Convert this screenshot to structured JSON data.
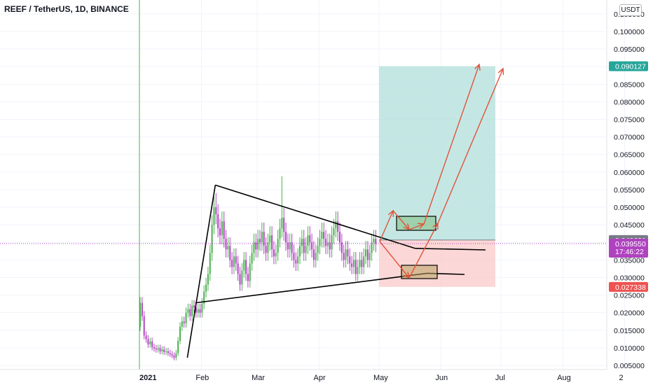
{
  "header": {
    "title": "REEF / TetherUS, 1D, BINANCE",
    "unit": "USDT"
  },
  "colors": {
    "up": "#26a69a",
    "up_wick": "#4caf50",
    "down": "#b042c0",
    "target_zone": "#b2dfdb",
    "stop_zone": "#fbcaca",
    "target_tag": "#26a69a",
    "stop_tag": "#ef5350",
    "current_tag": "#b042c0",
    "entry_tag": "#787b86",
    "arrow": "#e0533a",
    "box_top": "#7fbf7f",
    "box_bottom": "#b8a060",
    "session_line": "#4caf50"
  },
  "chart_data": {
    "type": "candlestick",
    "symbol": "REEF / TetherUS",
    "timeframe": "1D",
    "exchange": "BINANCE",
    "y_axis": {
      "ticks": [
        "0.005000",
        "0.010000",
        "0.015000",
        "0.020000",
        "0.025000",
        "0.030000",
        "0.035000",
        "0.040000",
        "0.045000",
        "0.050000",
        "0.055000",
        "0.060000",
        "0.065000",
        "0.070000",
        "0.075000",
        "0.080000",
        "0.085000",
        "0.090000",
        "0.095000",
        "0.100000",
        "0.105000"
      ],
      "range": [
        0.005,
        0.105
      ]
    },
    "x_axis": {
      "ticks": [
        "2021",
        "Feb",
        "Mar",
        "Apr",
        "May",
        "Jun",
        "Jul",
        "Aug",
        "2"
      ]
    },
    "price_tags": {
      "target": "0.090127",
      "entry": "0.040681",
      "current": "0.039550",
      "countdown": "17:46:22",
      "stop": "0.027338"
    },
    "triangle": {
      "upper_line": [
        [
          "2021-02-08",
          0.0563
        ],
        [
          "2021-05-19",
          0.0383
        ]
      ],
      "lower_line": [
        [
          "2021-01-29",
          0.0228
        ],
        [
          "2021-05-25",
          0.0312
        ]
      ],
      "left_line": [
        [
          "2021-01-25",
          0.0072
        ],
        [
          "2021-02-08",
          0.0563
        ]
      ]
    },
    "long_position": {
      "target": 0.090127,
      "entry": 0.040681,
      "stop": 0.027338
    },
    "zones": [
      {
        "name": "breakout",
        "low": 0.0436,
        "high": 0.0478
      },
      {
        "name": "retest",
        "low": 0.0291,
        "high": 0.0327
      }
    ],
    "candles_summary": {
      "start": "2021-01-01",
      "end": "2021-05-03",
      "low": 0.0065,
      "high": 0.0588
    }
  }
}
